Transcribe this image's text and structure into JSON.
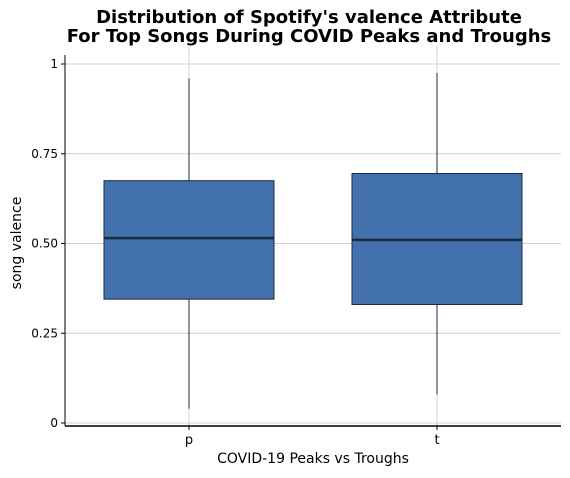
{
  "chart_data": {
    "type": "box",
    "title_lines": [
      "Distribution of Spotify's valence Attribute",
      "For Top Songs During COVID Peaks and Troughs"
    ],
    "xlabel": "COVID-19 Peaks vs Troughs",
    "ylabel": "song valence",
    "ylim": [
      0,
      1
    ],
    "yticks": [
      0,
      0.25,
      0.5,
      0.75,
      1
    ],
    "ytick_labels": [
      "0",
      "0.25",
      "0.50",
      "0.75",
      "1"
    ],
    "categories": [
      "p",
      "t"
    ],
    "boxes": [
      {
        "category": "p",
        "whisker_low": 0.04,
        "q1": 0.345,
        "median": 0.515,
        "q3": 0.675,
        "whisker_high": 0.96
      },
      {
        "category": "t",
        "whisker_low": 0.08,
        "q1": 0.33,
        "median": 0.51,
        "q3": 0.695,
        "whisker_high": 0.975
      }
    ],
    "grid": true,
    "colors": {
      "box_fill": "#4271ae",
      "box_edge": "#1a2b40",
      "grid": "#d0d0d0",
      "axis": "#000000"
    }
  }
}
